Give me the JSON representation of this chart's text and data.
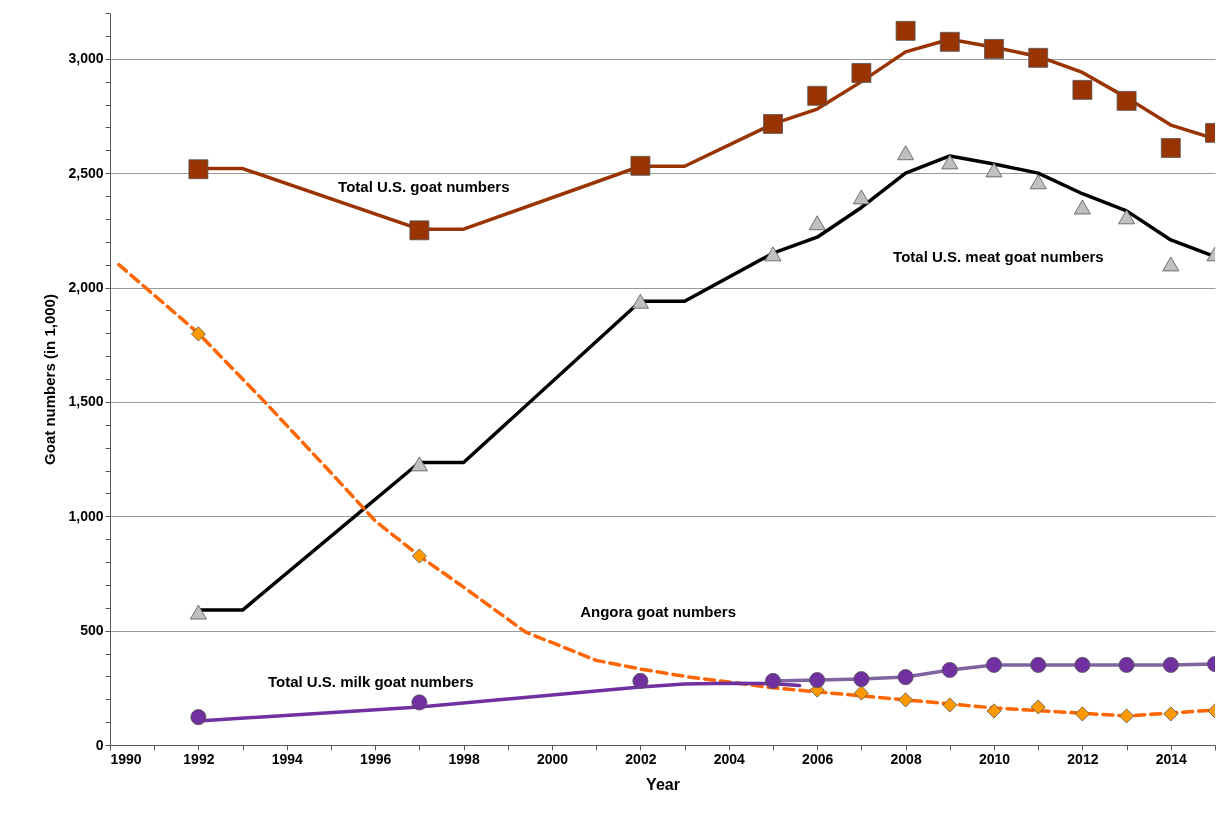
{
  "chart_data": {
    "type": "line",
    "xlabel": "Year",
    "ylabel": "Goat numbers (in 1,000)",
    "xlim": [
      1990,
      2015
    ],
    "xticks": [
      1990,
      {
        "value": 1991,
        "label": null
      },
      1992,
      {
        "value": 1993,
        "label": null
      },
      1994,
      {
        "value": 1995,
        "label": null
      },
      1996,
      {
        "value": 1997,
        "label": null
      },
      1998,
      {
        "value": 1999,
        "label": null
      },
      2000,
      {
        "value": 2001,
        "label": null
      },
      2002,
      {
        "value": 2003,
        "label": null
      },
      2004,
      {
        "value": 2005,
        "label": null
      },
      2006,
      {
        "value": 2007,
        "label": null
      },
      2008,
      {
        "value": 2009,
        "label": null
      },
      2010,
      {
        "value": 2011,
        "label": null
      },
      2012,
      {
        "value": 2013,
        "label": null
      },
      2014,
      {
        "value": 2015,
        "label": null
      }
    ],
    "ylim": [
      0,
      3200
    ],
    "yticks": [
      0,
      {
        "value": 100,
        "label": null
      },
      {
        "value": 200,
        "label": null
      },
      {
        "value": 300,
        "label": null
      },
      {
        "value": 400,
        "label": null
      },
      500,
      {
        "value": 600,
        "label": null
      },
      {
        "value": 700,
        "label": null
      },
      {
        "value": 800,
        "label": null
      },
      {
        "value": 900,
        "label": null
      },
      {
        "value": 1000,
        "label": "1,000"
      },
      {
        "value": 1100,
        "label": null
      },
      {
        "value": 1200,
        "label": null
      },
      {
        "value": 1300,
        "label": null
      },
      {
        "value": 1400,
        "label": null
      },
      {
        "value": 1500,
        "label": "1,500"
      },
      {
        "value": 1600,
        "label": null
      },
      {
        "value": 1700,
        "label": null
      },
      {
        "value": 1800,
        "label": null
      },
      {
        "value": 1900,
        "label": null
      },
      {
        "value": 2000,
        "label": "2,000"
      },
      {
        "value": 2100,
        "label": null
      },
      {
        "value": 2200,
        "label": null
      },
      {
        "value": 2300,
        "label": null
      },
      {
        "value": 2400,
        "label": null
      },
      {
        "value": 2500,
        "label": "2,500"
      },
      {
        "value": 2600,
        "label": null
      },
      {
        "value": 2700,
        "label": null
      },
      {
        "value": 2800,
        "label": null
      },
      {
        "value": 2900,
        "label": null
      },
      {
        "value": 3000,
        "label": "3,000"
      },
      {
        "value": 3100,
        "label": null
      },
      {
        "value": 3200,
        "label": null
      }
    ],
    "grid": "y",
    "series": [
      {
        "name": "Total U.S. goat numbers",
        "color": "#993300",
        "line_style": "solid",
        "x": [
          1992,
          1993,
          1997,
          1998,
          2002,
          2003,
          2005,
          2006,
          2007,
          2008,
          2009,
          2010,
          2011,
          2012,
          2013,
          2014,
          2015
        ],
        "values": [
          2520,
          2520,
          2255,
          2255,
          2530,
          2530,
          2715,
          2780,
          2900,
          3030,
          3085,
          3050,
          3010,
          2940,
          2830,
          2710,
          2650
        ]
      },
      {
        "type": "scatter",
        "color": "#993300",
        "marker": "square",
        "x": [
          1992,
          1997,
          2002,
          2005,
          2006,
          2007,
          2008,
          2009,
          2010,
          2011,
          2012,
          2013,
          2014,
          2015
        ],
        "values": [
          2517,
          2250,
          2532,
          2715,
          2838,
          2938,
          3122,
          3074,
          3043,
          3004,
          2864,
          2816,
          2610,
          2676
        ]
      },
      {
        "name": "Total U.S. meat goat numbers",
        "color": "#000000",
        "line_style": "solid",
        "x": [
          1992,
          1993,
          1997,
          1998,
          2002,
          2003,
          2005,
          2006,
          2007,
          2008,
          2009,
          2010,
          2011,
          2012,
          2013,
          2014,
          2015
        ],
        "values": [
          590,
          590,
          1235,
          1235,
          1940,
          1940,
          2150,
          2220,
          2350,
          2500,
          2575,
          2540,
          2500,
          2410,
          2335,
          2208,
          2135
        ]
      },
      {
        "type": "scatter",
        "color": "#c0c0c0",
        "marker": "triangle",
        "x": [
          1992,
          1997,
          2002,
          2005,
          2006,
          2007,
          2008,
          2009,
          2010,
          2011,
          2012,
          2013,
          2014,
          2015
        ],
        "values": [
          581,
          1229,
          1940,
          2147,
          2283,
          2396,
          2589,
          2549,
          2514,
          2462,
          2352,
          2309,
          2103,
          2147
        ]
      },
      {
        "name": "Angora goat numbers",
        "color": "#ff6600",
        "line_style": "dashed",
        "x": [
          1990.2,
          1992,
          1993.5,
          1995,
          1996,
          1997,
          1998,
          1999.4,
          2001,
          2002,
          2003,
          2005,
          2007,
          2010,
          2013,
          2015
        ],
        "values": [
          2100,
          1800,
          1500,
          1190,
          980,
          826,
          690,
          494,
          370,
          332,
          300,
          250,
          215,
          162,
          127,
          153
        ]
      },
      {
        "type": "scatter",
        "color": "#ff9900",
        "marker": "diamond",
        "x": [
          1992,
          1997,
          2005,
          2006,
          2007,
          2008,
          2009,
          2010,
          2011,
          2012,
          2013,
          2014,
          2015
        ],
        "values": [
          1797,
          826,
          null,
          240,
          227,
          197,
          175,
          149,
          166,
          136,
          127,
          136,
          149
        ]
      },
      {
        "name": "Total U.S. milk goat numbers",
        "color": "#7030a0",
        "line_style": "solid",
        "x": [
          1992,
          1997,
          2002,
          2003,
          2004,
          2005,
          2005.6
        ],
        "values": [
          105,
          166,
          254,
          267,
          270,
          268,
          260
        ]
      },
      {
        "color": "#8064a2",
        "line_style": "solid",
        "x": [
          2005,
          2006,
          2007,
          2008,
          2009,
          2010,
          2011,
          2012,
          2013,
          2014,
          2015
        ],
        "values": [
          280,
          284,
          288,
          297,
          328,
          350,
          350,
          350,
          350,
          350,
          354
        ]
      },
      {
        "type": "scatter",
        "color": "#7030a0",
        "marker": "circle",
        "x": [
          1992,
          1997,
          2002,
          2005,
          2006,
          2007,
          2008,
          2009,
          2010,
          2011,
          2012,
          2013,
          2014,
          2015
        ],
        "values": [
          122,
          186,
          280,
          280,
          284,
          288,
          297,
          328,
          350,
          350,
          350,
          350,
          350,
          354
        ]
      }
    ]
  }
}
